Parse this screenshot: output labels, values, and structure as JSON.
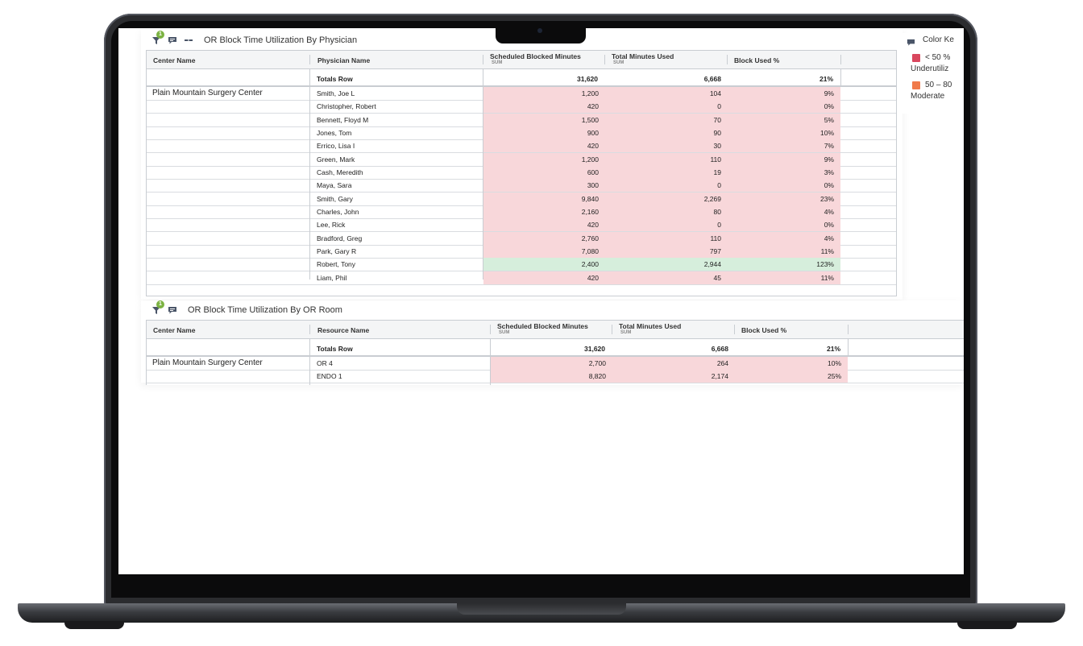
{
  "panel1": {
    "title": "OR Block Time Utilization By Physician",
    "filter_badge": "1",
    "columns": {
      "center": "Center Name",
      "physician": "Physician Name",
      "scheduled": "Scheduled Blocked Minutes",
      "scheduled_sub": "SUM",
      "used": "Total Minutes Used",
      "used_sub": "SUM",
      "pct": "Block Used %"
    },
    "totals": {
      "label": "Totals Row",
      "scheduled": "31,620",
      "used": "6,668",
      "pct": "21%"
    },
    "center_name": "Plain Mountain Surgery Center",
    "rows": [
      {
        "name": "Smith, Joe L",
        "scheduled": "1,200",
        "used": "104",
        "pct": "9%",
        "status": "under"
      },
      {
        "name": "Christopher, Robert",
        "scheduled": "420",
        "used": "0",
        "pct": "0%",
        "status": "under"
      },
      {
        "name": "Bennett, Floyd M",
        "scheduled": "1,500",
        "used": "70",
        "pct": "5%",
        "status": "under"
      },
      {
        "name": "Jones, Tom",
        "scheduled": "900",
        "used": "90",
        "pct": "10%",
        "status": "under"
      },
      {
        "name": "Errico, Lisa I",
        "scheduled": "420",
        "used": "30",
        "pct": "7%",
        "status": "under"
      },
      {
        "name": "Green, Mark",
        "scheduled": "1,200",
        "used": "110",
        "pct": "9%",
        "status": "under"
      },
      {
        "name": "Cash, Meredith",
        "scheduled": "600",
        "used": "19",
        "pct": "3%",
        "status": "under"
      },
      {
        "name": "Maya, Sara",
        "scheduled": "300",
        "used": "0",
        "pct": "0%",
        "status": "under"
      },
      {
        "name": "Smith, Gary",
        "scheduled": "9,840",
        "used": "2,269",
        "pct": "23%",
        "status": "under"
      },
      {
        "name": "Charles, John",
        "scheduled": "2,160",
        "used": "80",
        "pct": "4%",
        "status": "under"
      },
      {
        "name": "Lee, Rick",
        "scheduled": "420",
        "used": "0",
        "pct": "0%",
        "status": "under"
      },
      {
        "name": "Bradford, Greg",
        "scheduled": "2,760",
        "used": "110",
        "pct": "4%",
        "status": "under"
      },
      {
        "name": "Park, Gary R",
        "scheduled": "7,080",
        "used": "797",
        "pct": "11%",
        "status": "under"
      },
      {
        "name": "Robert, Tony",
        "scheduled": "2,400",
        "used": "2,944",
        "pct": "123%",
        "status": "over"
      },
      {
        "name": "Liam, Phil",
        "scheduled": "420",
        "used": "45",
        "pct": "11%",
        "status": "under"
      }
    ]
  },
  "panel2": {
    "title": "OR Block Time Utilization By OR Room",
    "filter_badge": "1",
    "columns": {
      "center": "Center Name",
      "resource": "Resource Name",
      "scheduled": "Scheduled Blocked Minutes",
      "scheduled_sub": "SUM",
      "used": "Total Minutes Used",
      "used_sub": "SUM",
      "pct": "Block Used %"
    },
    "totals": {
      "label": "Totals Row",
      "scheduled": "31,620",
      "used": "6,668",
      "pct": "21%"
    },
    "center_name": "Plain Mountain Surgery Center",
    "rows": [
      {
        "name": "OR 4",
        "scheduled": "2,700",
        "used": "264",
        "pct": "10%",
        "status": "under"
      },
      {
        "name": "ENDO 1",
        "scheduled": "8,820",
        "used": "2,174",
        "pct": "25%",
        "status": "under"
      }
    ]
  },
  "legend": {
    "title": "Color Ke",
    "items": [
      {
        "range": "< 50 %",
        "label": "Underutiliz",
        "color": "#d9475e"
      },
      {
        "range": "50 – 80",
        "label": "Moderate",
        "color": "#f07a4a"
      }
    ]
  },
  "colors": {
    "under_bg": "#f8d7da",
    "over_bg": "#d6eedc",
    "badge": "#7cb342",
    "icon": "#4a5568"
  },
  "icons": [
    "filter-icon",
    "comment-icon",
    "link-icon"
  ]
}
